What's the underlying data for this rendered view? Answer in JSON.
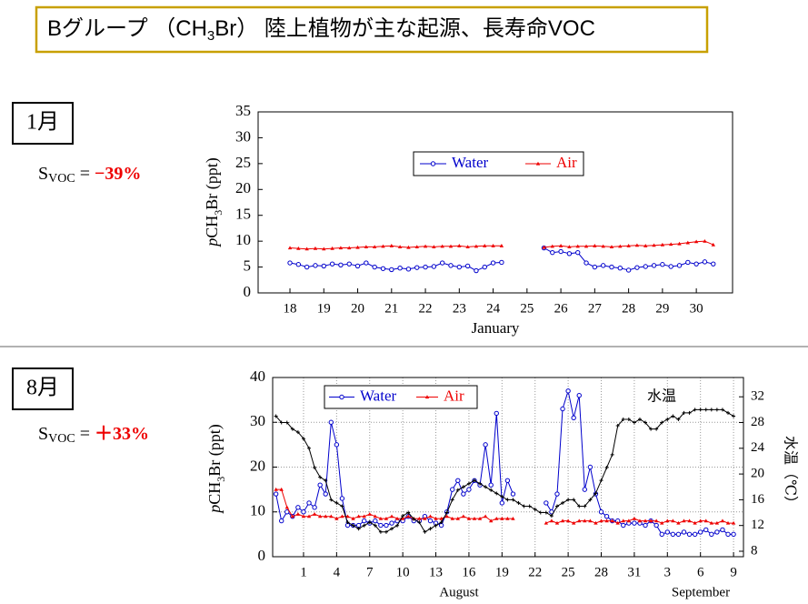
{
  "header": {
    "title_parts": [
      "Bグループ （CH",
      "3",
      "Br） 陸上植物が主な起源、長寿命VOC"
    ]
  },
  "panels": [
    {
      "month": "1月",
      "svoc_parts": [
        "S",
        "VOC",
        " = ",
        "−39%"
      ]
    },
    {
      "month": "8月",
      "svoc_parts": [
        "S",
        "VOC",
        " = ",
        "＋33%"
      ]
    }
  ],
  "chart_data": [
    {
      "type": "line",
      "x": [
        18,
        18.25,
        18.5,
        18.75,
        19,
        19.25,
        19.5,
        19.75,
        20,
        20.25,
        20.5,
        20.75,
        21,
        21.25,
        21.5,
        21.75,
        22,
        22.25,
        22.5,
        22.75,
        23,
        23.25,
        23.5,
        23.75,
        24,
        24.25,
        24.75,
        25.5,
        25.75,
        26,
        26.25,
        26.5,
        26.75,
        27,
        27.25,
        27.5,
        27.75,
        28,
        28.25,
        28.5,
        28.75,
        29,
        29.25,
        29.5,
        29.75,
        30,
        30.25,
        30.5
      ],
      "series": [
        {
          "name": "Water",
          "color": "#0000cc",
          "marker": "circle",
          "values": [
            5.8,
            5.5,
            5.0,
            5.3,
            5.2,
            5.6,
            5.4,
            5.6,
            5.2,
            5.8,
            5.0,
            4.7,
            4.5,
            4.8,
            4.6,
            4.9,
            5.0,
            5.1,
            5.8,
            5.3,
            5.0,
            5.2,
            4.3,
            5.0,
            5.8,
            5.9,
            null,
            8.7,
            7.8,
            8.0,
            7.6,
            7.8,
            5.8,
            5.0,
            5.3,
            5.0,
            4.8,
            4.4,
            4.9,
            5.1,
            5.3,
            5.5,
            5.1,
            5.3,
            5.9,
            5.6,
            6.0,
            5.6
          ]
        },
        {
          "name": "Air",
          "color": "#ee0000",
          "marker": "triangle",
          "values": [
            8.7,
            8.6,
            8.5,
            8.6,
            8.5,
            8.6,
            8.7,
            8.7,
            8.8,
            8.9,
            8.9,
            9.0,
            9.1,
            8.9,
            8.8,
            8.9,
            9.0,
            8.9,
            9.0,
            9.0,
            9.1,
            8.9,
            9.0,
            9.1,
            9.1,
            9.1,
            null,
            8.8,
            9.0,
            9.1,
            8.9,
            9.0,
            9.0,
            9.1,
            9.0,
            8.9,
            9.0,
            9.1,
            9.2,
            9.1,
            9.2,
            9.3,
            9.4,
            9.5,
            9.7,
            9.9,
            10.0,
            9.3
          ]
        }
      ],
      "xlim": [
        17.06,
        31.07
      ],
      "xticks": [
        18,
        19,
        20,
        21,
        22,
        23,
        24,
        25,
        26,
        27,
        28,
        29,
        30
      ],
      "ylim": [
        0,
        35
      ],
      "yticks": [
        0,
        5,
        10,
        15,
        20,
        25,
        30,
        35
      ],
      "x_label": "January",
      "y_label_parts": [
        "p",
        "CH",
        "3",
        "Br (ppt)"
      ],
      "legend": "top",
      "grid": false
    },
    {
      "type": "line",
      "x": [
        -1.5,
        -1,
        -0.5,
        0,
        0.5,
        1,
        1.5,
        2,
        2.5,
        3,
        3.5,
        4,
        4.5,
        5,
        5.5,
        6,
        6.5,
        7,
        7.5,
        8,
        8.5,
        9,
        9.5,
        10,
        10.5,
        11,
        11.5,
        12,
        12.5,
        13,
        13.5,
        14,
        14.5,
        15,
        15.5,
        16,
        16.5,
        17,
        17.5,
        18,
        18.5,
        19,
        19.5,
        20,
        20.5,
        21,
        21.5,
        22,
        22.5,
        23,
        23.5,
        24,
        24.5,
        25,
        25.5,
        26,
        26.5,
        27,
        27.5,
        28,
        28.5,
        29,
        29.5,
        30,
        30.5,
        31,
        31.5,
        32,
        32.5,
        33,
        33.5,
        34,
        34.5,
        35,
        35.5,
        36,
        36.5,
        37,
        37.5,
        38,
        38.5,
        39,
        39.5,
        40
      ],
      "series": [
        {
          "name": "Water",
          "color": "#0000cc",
          "marker": "circle",
          "values": [
            14,
            8,
            10,
            9,
            11,
            10,
            12,
            11,
            16,
            14,
            30,
            25,
            13,
            7,
            7,
            7,
            8,
            7.5,
            8,
            7,
            7,
            7.5,
            8,
            8,
            9,
            8,
            8,
            9,
            8,
            7.5,
            7,
            10,
            15,
            17,
            14,
            15,
            17,
            16,
            25,
            16,
            32,
            12,
            17,
            14,
            null,
            null,
            null,
            null,
            null,
            12,
            10,
            14,
            33,
            37,
            31,
            36,
            15,
            20,
            14,
            10,
            9,
            8,
            8,
            7,
            7.5,
            7.5,
            7.5,
            7,
            8,
            7,
            5,
            5.5,
            5,
            5,
            5.5,
            5,
            5,
            5.5,
            6,
            5,
            5.5,
            6,
            5,
            5
          ]
        },
        {
          "name": "Air",
          "color": "#ee0000",
          "marker": "triangle",
          "values": [
            15,
            15,
            11,
            9,
            9.5,
            9,
            9,
            9.5,
            9,
            9,
            9,
            8.5,
            9,
            9,
            8.5,
            9,
            9,
            9.5,
            9,
            8.5,
            8.5,
            9,
            8.5,
            8.5,
            9,
            8.5,
            8.5,
            8.5,
            9,
            8.5,
            8.5,
            9,
            8.5,
            8.5,
            9,
            8.5,
            8.5,
            8.5,
            9,
            8,
            8.5,
            8.5,
            8.5,
            8.5,
            null,
            null,
            null,
            null,
            null,
            7.5,
            8,
            7.5,
            8,
            8,
            7.5,
            8,
            8,
            8,
            7.5,
            8,
            8,
            8,
            7.5,
            8,
            8,
            8.5,
            8,
            8,
            8,
            8,
            7.5,
            8,
            8,
            7.5,
            8,
            8,
            7.5,
            8,
            8,
            7.5,
            7.5,
            8,
            7.5,
            7.5
          ]
        },
        {
          "color": "#000000",
          "marker": "plus",
          "axis": "y2",
          "values": [
            29,
            28,
            28,
            27,
            26.5,
            25.5,
            24,
            21,
            19.5,
            19,
            16,
            15.5,
            15,
            12.5,
            12,
            11.5,
            12,
            12.5,
            12,
            11,
            11,
            11.5,
            12,
            13.5,
            14,
            13,
            12.5,
            11,
            11.5,
            12,
            12.5,
            14,
            16,
            17.5,
            18,
            18.5,
            19,
            18.5,
            18,
            17.5,
            17,
            16.5,
            16,
            16,
            15.5,
            15,
            15,
            14.5,
            14,
            14,
            13.5,
            15,
            15.5,
            16,
            16,
            15,
            15,
            16,
            17,
            19,
            21,
            23,
            27.5,
            28.5,
            28.5,
            28,
            28.5,
            28,
            27,
            27,
            28,
            28.5,
            29,
            28.5,
            29.5,
            29.5,
            30,
            30,
            30,
            30,
            30,
            30,
            29.5,
            29
          ]
        }
      ],
      "xlim": [
        -1.8,
        40.9
      ],
      "xticks": [
        1,
        4,
        7,
        10,
        13,
        16,
        19,
        22,
        25,
        28,
        31,
        {
          "value": 34,
          "label": "3"
        },
        {
          "value": 37,
          "label": "6"
        },
        {
          "value": 40,
          "label": "9"
        }
      ],
      "ylim": [
        0,
        40
      ],
      "yticks": [
        0,
        10,
        20,
        30,
        40
      ],
      "y2lim": [
        7.15,
        35
      ],
      "y2ticks": [
        8,
        12,
        16,
        20,
        24,
        28,
        32
      ],
      "x_group_labels": [
        "August",
        "September"
      ],
      "y_label_parts": [
        "p",
        "CH",
        "3",
        "Br (ppt)"
      ],
      "y2_label": "水温（℃）",
      "annotation": "水温",
      "legend": "top-left",
      "grid": true
    }
  ]
}
